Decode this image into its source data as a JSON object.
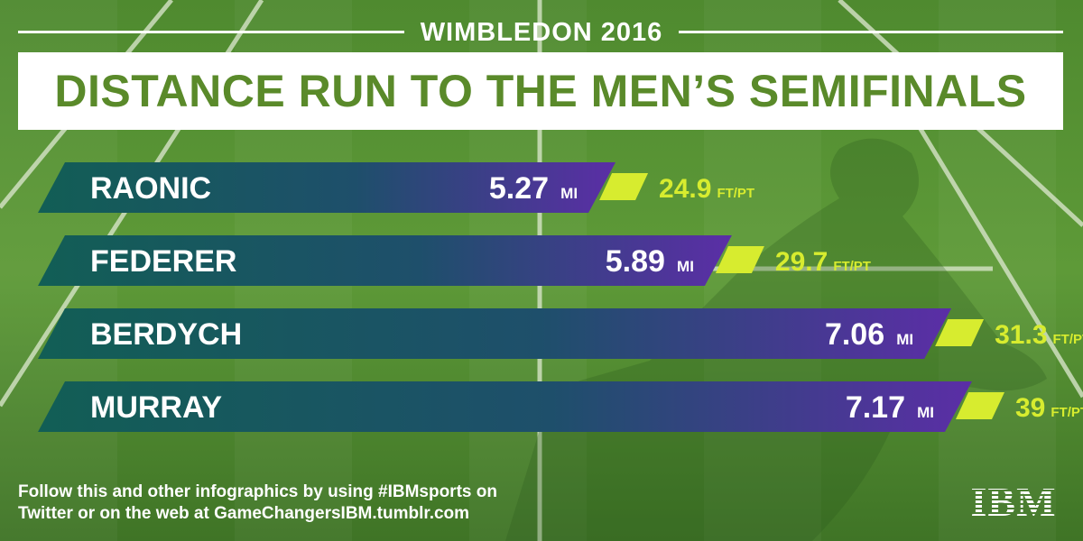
{
  "eyebrow": "WIMBLEDON 2016",
  "title": "DISTANCE RUN TO THE MEN’S SEMIFINALS",
  "footer": {
    "line1": "Follow this and other infographics by using #IBMsports on",
    "line2": "Twitter or on the web at GameChangersIBM.tumblr.com"
  },
  "logo": {
    "text": "IBM"
  },
  "colors": {
    "bar_left": "#125e55",
    "bar_right": "#5b2ea6",
    "accent": "#d7ec2f",
    "title_green": "#5a8a2a"
  },
  "chart_data": {
    "type": "bar",
    "orientation": "horizontal",
    "categories": [
      "RAONIC",
      "FEDERER",
      "BERDYCH",
      "MURRAY"
    ],
    "series": [
      {
        "values": [
          5.27,
          5.89,
          7.06,
          7.17
        ],
        "labels": [
          "5.27",
          "5.89",
          "7.06",
          "7.17"
        ],
        "unit": "MI"
      },
      {
        "values": [
          24.9,
          29.7,
          31.3,
          39
        ],
        "labels": [
          "24.9",
          "29.7",
          "31.3",
          "39"
        ],
        "unit": "FT/PT"
      }
    ]
  }
}
